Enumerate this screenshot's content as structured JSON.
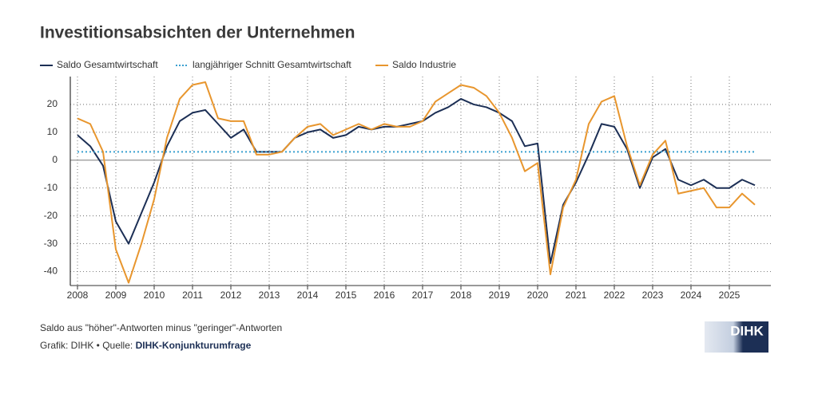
{
  "chart_data": {
    "type": "line",
    "title": "Investitionsabsichten der Unternehmen",
    "categories": [
      "2008",
      null,
      null,
      "2009",
      null,
      null,
      "2010",
      null,
      null,
      "2011",
      null,
      null,
      "2012",
      null,
      null,
      "2013",
      null,
      null,
      "2014",
      null,
      null,
      "2015",
      null,
      null,
      "2016",
      null,
      null,
      "2017",
      null,
      null,
      "2018",
      null,
      null,
      "2019",
      null,
      null,
      "2020",
      null,
      null,
      "2021",
      null,
      null,
      "2022",
      null,
      null,
      "2023",
      null,
      null,
      "2024",
      null,
      null,
      "2025",
      null,
      null
    ],
    "series": [
      {
        "name": "Saldo Gesamtwirtschaft",
        "color": "#1c2f55",
        "values": [
          9,
          5,
          -2,
          -22,
          -30,
          -19,
          -8,
          5,
          14,
          17,
          18,
          13,
          8,
          11,
          3,
          3,
          3,
          8,
          10,
          11,
          8,
          9,
          12,
          11,
          12,
          12,
          13,
          14,
          17,
          19,
          22,
          20,
          19,
          17,
          14,
          5,
          6,
          -37,
          -16,
          -8,
          2,
          13,
          12,
          4,
          -10,
          1,
          4,
          -7,
          -9,
          -7,
          -10,
          -10,
          -7,
          -9
        ]
      },
      {
        "name": "langjähriger Schnitt Gesamtwirtschaft",
        "color": "#3aa0d0",
        "dashed": true,
        "value": 3
      },
      {
        "name": "Saldo Industrie",
        "color": "#e8962e",
        "values": [
          15,
          13,
          3,
          -32,
          -44,
          -30,
          -14,
          8,
          22,
          27,
          28,
          15,
          14,
          14,
          2,
          2,
          3,
          8,
          12,
          13,
          9,
          11,
          13,
          11,
          13,
          12,
          12,
          14,
          21,
          24,
          27,
          26,
          23,
          17,
          8,
          -4,
          -1,
          -41,
          -17,
          -7,
          13,
          21,
          23,
          5,
          -9,
          2,
          7,
          -12,
          -11,
          -10,
          -17,
          -17,
          -12,
          -16
        ]
      }
    ],
    "ylim": [
      -45,
      30
    ],
    "yticks": [
      -40,
      -30,
      -20,
      -10,
      0,
      10,
      20
    ],
    "grid": true,
    "note": "Saldo aus \"höher\"-Antworten minus \"geringer\"-Antworten",
    "source_prefix": "Grafik: DIHK • Quelle:",
    "source_link": "DIHK-Konjunkturumfrage",
    "logo": "DIHK"
  }
}
